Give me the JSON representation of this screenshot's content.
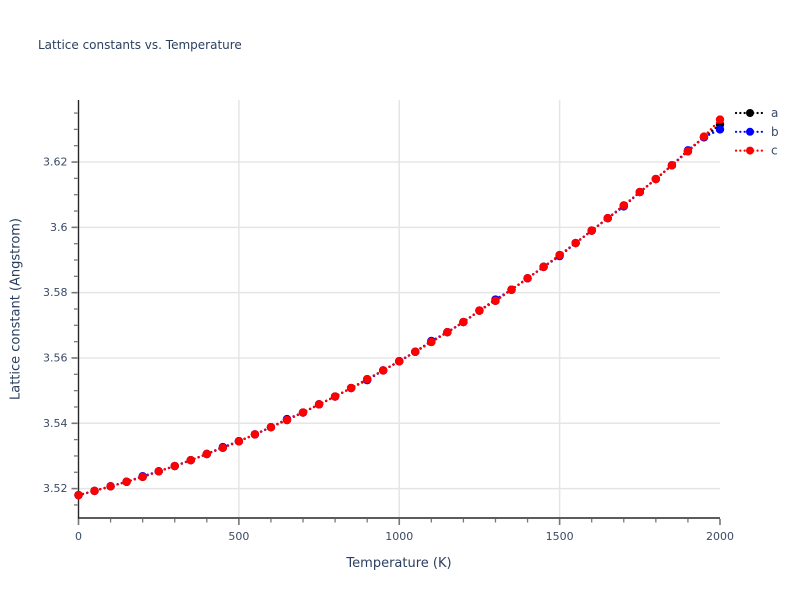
{
  "colors": {
    "title_text": "#2a3f5f",
    "axis_title_text": "#2a3f5f",
    "tick_label_text": "#3b4a66",
    "legend_text": "#3b4a66",
    "gridline": "#e5e5e5",
    "spine": "#262626",
    "tick_mark": "#777777",
    "background": "#ffffff"
  },
  "chart_data": {
    "type": "line",
    "title": "Lattice constants vs. Temperature",
    "xlabel": "Temperature (K)",
    "ylabel": "Lattice constant (Angstrom)",
    "xlim": [
      0,
      2000
    ],
    "ylim": [
      3.511,
      3.639
    ],
    "grid": "major",
    "legend_position": "top-right-outside",
    "line_style": "dotted",
    "marker": "circle",
    "x_ticks": {
      "values": [
        0,
        500,
        1000,
        1500,
        2000
      ],
      "labels": [
        "0",
        "500",
        "1000",
        "1500",
        "2000"
      ]
    },
    "y_ticks": {
      "values": [
        3.52,
        3.54,
        3.56,
        3.58,
        3.6,
        3.62
      ],
      "labels": [
        "3.52",
        "3.54",
        "3.56",
        "3.58",
        "3.6",
        "3.62"
      ]
    },
    "x_minor_ticks": [
      100,
      200,
      300,
      400,
      600,
      700,
      800,
      900,
      1100,
      1200,
      1300,
      1400,
      1600,
      1700,
      1800,
      1900
    ],
    "y_minor_ticks": [
      3.515,
      3.525,
      3.53,
      3.535,
      3.545,
      3.55,
      3.555,
      3.565,
      3.57,
      3.575,
      3.585,
      3.59,
      3.595,
      3.605,
      3.61,
      3.615,
      3.625,
      3.63,
      3.635
    ],
    "x_grid_values": [
      500,
      1000,
      1500
    ],
    "x": [
      0,
      50,
      100,
      150,
      200,
      250,
      300,
      350,
      400,
      450,
      500,
      550,
      600,
      650,
      700,
      750,
      800,
      850,
      900,
      950,
      1000,
      1050,
      1100,
      1150,
      1200,
      1250,
      1300,
      1350,
      1400,
      1450,
      1500,
      1550,
      1600,
      1650,
      1700,
      1750,
      1800,
      1850,
      1900,
      1950,
      2000
    ],
    "series": [
      {
        "name": "a",
        "color": "#000000",
        "values": [
          3.518,
          3.5193,
          3.5207,
          3.5221,
          3.5236,
          3.5253,
          3.5269,
          3.5287,
          3.5306,
          3.5325,
          3.5345,
          3.5366,
          3.5388,
          3.541,
          3.5433,
          3.5458,
          3.5482,
          3.5508,
          3.5535,
          3.5562,
          3.559,
          3.5619,
          3.5649,
          3.5679,
          3.571,
          3.5745,
          3.5775,
          3.5809,
          3.5844,
          3.5879,
          3.5915,
          3.5952,
          3.599,
          3.6028,
          3.6067,
          3.6108,
          3.6148,
          3.619,
          3.6233,
          3.6276,
          3.6315
        ]
      },
      {
        "name": "b",
        "color": "#0000ff",
        "values": [
          3.518,
          3.5193,
          3.5207,
          3.5221,
          3.5238,
          3.5253,
          3.5269,
          3.5287,
          3.5306,
          3.5327,
          3.5345,
          3.5366,
          3.5388,
          3.5413,
          3.5433,
          3.5458,
          3.5482,
          3.5508,
          3.5532,
          3.5562,
          3.559,
          3.5619,
          3.5652,
          3.5679,
          3.571,
          3.5745,
          3.5779,
          3.5809,
          3.5844,
          3.5879,
          3.5912,
          3.5952,
          3.599,
          3.6028,
          3.6064,
          3.6108,
          3.6148,
          3.619,
          3.6236,
          3.6276,
          3.63
        ]
      },
      {
        "name": "c",
        "color": "#ff0000",
        "values": [
          3.518,
          3.5193,
          3.5207,
          3.5221,
          3.5236,
          3.5253,
          3.5269,
          3.5287,
          3.5306,
          3.5325,
          3.5345,
          3.5366,
          3.5388,
          3.541,
          3.5433,
          3.5458,
          3.5482,
          3.5508,
          3.5535,
          3.5562,
          3.559,
          3.5619,
          3.5649,
          3.5679,
          3.571,
          3.5745,
          3.5775,
          3.5809,
          3.5844,
          3.5879,
          3.5915,
          3.5952,
          3.599,
          3.6028,
          3.6067,
          3.6108,
          3.6148,
          3.619,
          3.6233,
          3.6278,
          3.633
        ]
      }
    ]
  }
}
